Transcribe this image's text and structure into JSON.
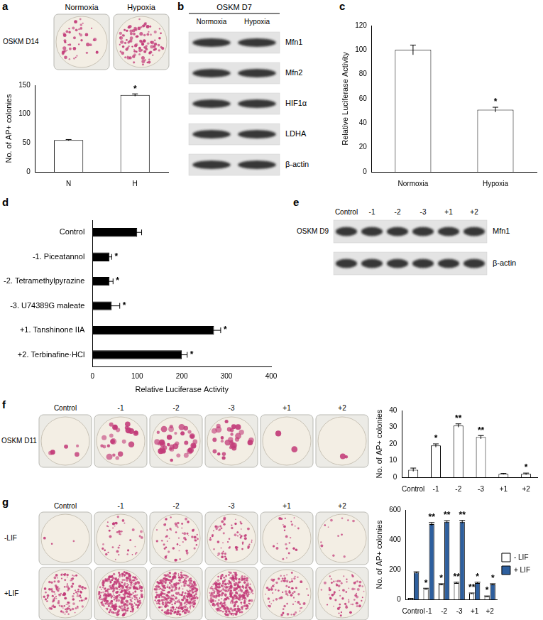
{
  "panels": {
    "a": {
      "label": "a",
      "plates": {
        "columns": [
          "Normoxia",
          "Hypoxia"
        ],
        "rows": [
          "OSKM D14"
        ]
      }
    },
    "b": {
      "label": "b",
      "blot": {
        "header": "OSKM D7",
        "columns": [
          "Normoxia",
          "Hypoxia"
        ],
        "rows": [
          "Mfn1",
          "Mfn2",
          "HIF1α",
          "LDHA",
          "β-actin"
        ]
      }
    },
    "c": {
      "label": "c"
    },
    "d": {
      "label": "d"
    },
    "e": {
      "label": "e",
      "blot": {
        "side_label": "OSKM D9",
        "columns": [
          "Control",
          "-1",
          "-2",
          "-3",
          "+1",
          "+2"
        ],
        "rows": [
          "Mfn1",
          "β-actin"
        ]
      }
    },
    "f": {
      "label": "f",
      "plates": {
        "columns": [
          "Control",
          "-1",
          "-2",
          "-3",
          "+1",
          "+2"
        ],
        "rows": [
          "OSKM D11"
        ]
      }
    },
    "g": {
      "label": "g",
      "plates": {
        "columns": [
          "Control",
          "-1",
          "-2",
          "-3",
          "+1",
          "+2"
        ],
        "rows": [
          "-LIF",
          "+LIF"
        ]
      }
    }
  },
  "chart_data": [
    {
      "type": "bar",
      "categories": [
        "N",
        "H"
      ],
      "values": [
        55,
        133
      ],
      "errors": [
        1,
        2
      ],
      "annotations": [
        null,
        "*"
      ],
      "color": "#ffffff",
      "y_label": "No. of AP+ colonies",
      "ylim": [
        0,
        150
      ],
      "yticks": [
        0,
        50,
        100,
        150
      ],
      "grid": false
    },
    {
      "type": "bar",
      "categories": [
        "Normoxia",
        "Hypoxia"
      ],
      "values": [
        100,
        51
      ],
      "errors": [
        4,
        2
      ],
      "annotations": [
        null,
        "*"
      ],
      "color": "#ffffff",
      "y_label": "Relative Luciferase Activity",
      "ylim": [
        0,
        120
      ],
      "yticks": [
        0,
        20,
        40,
        60,
        80,
        100,
        120
      ],
      "grid": false
    },
    {
      "type": "bar",
      "orientation": "horizontal",
      "categories": [
        "Control",
        "-1. Piceatannol",
        "-2. Tetramethylpyrazine",
        "-3. U74389G maleate",
        "+1. Tanshinone IIA",
        "+2. Terbinafine·HCl"
      ],
      "values": [
        100,
        38,
        38,
        43,
        272,
        200
      ],
      "errors": [
        10,
        5,
        8,
        18,
        15,
        12
      ],
      "annotations": [
        null,
        "*",
        "*",
        "*",
        "*",
        "*"
      ],
      "color": "#000000",
      "x_label": "Relative Luciferase Activity",
      "xlim": [
        0,
        400
      ],
      "xticks": [
        0,
        100,
        200,
        300,
        400
      ],
      "grid": false
    },
    {
      "type": "bar",
      "categories": [
        "Control",
        "-1",
        "-2",
        "-3",
        "+1",
        "+2"
      ],
      "values": [
        4.5,
        19,
        31,
        24,
        2,
        2
      ],
      "errors": [
        1,
        1,
        1,
        1,
        0.3,
        0.5
      ],
      "annotations": [
        null,
        "*",
        "**",
        "**",
        null,
        "*"
      ],
      "color": "#ffffff",
      "y_label": "No. of AP+ colonies",
      "ylim": [
        0,
        40
      ],
      "yticks": [
        0,
        10,
        20,
        30,
        40
      ],
      "grid": false
    },
    {
      "type": "bar",
      "categories": [
        "Control",
        "-1",
        "-2",
        "-3",
        "+1",
        "+2"
      ],
      "legend": "right",
      "series": [
        {
          "name": "- LIF",
          "color": "#ffffff",
          "values": [
            5,
            70,
            100,
            110,
            40,
            20
          ],
          "errors": [
            2,
            5,
            5,
            5,
            3,
            3
          ],
          "annotations": [
            null,
            "*",
            "*",
            "**",
            "**",
            "*"
          ]
        },
        {
          "name": "+ LIF",
          "color": "#2e5f9e",
          "values": [
            180,
            505,
            520,
            520,
            110,
            100
          ],
          "errors": [
            5,
            10,
            8,
            10,
            5,
            5
          ],
          "annotations": [
            null,
            "**",
            "**",
            "**",
            "*",
            "*"
          ]
        }
      ],
      "y_label": "No. of AP+ colonies",
      "ylim": [
        0,
        600
      ],
      "yticks": [
        0,
        200,
        400,
        600
      ],
      "grid": false
    }
  ]
}
